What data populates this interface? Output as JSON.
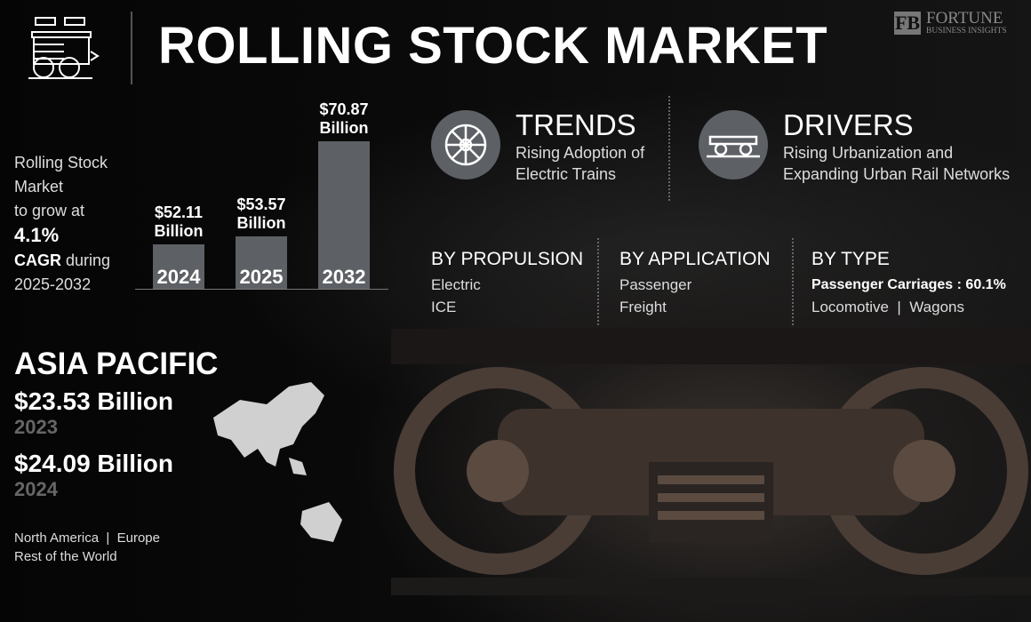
{
  "header": {
    "title": "ROLLING STOCK MARKET",
    "logo_line1": "FORTUNE",
    "logo_line2": "BUSINESS INSIGHTS",
    "icon": "train-wagon-icon"
  },
  "growth": {
    "line1": "Rolling Stock",
    "line2": "Market",
    "line3": "to grow at",
    "cagr": "4.1%",
    "cagr_label": "CAGR",
    "during": " during",
    "period": "2025-2032"
  },
  "chart_data": {
    "type": "bar",
    "categories": [
      "2024",
      "2025",
      "2032"
    ],
    "values": [
      52.11,
      53.57,
      70.87
    ],
    "labels": [
      "$52.11",
      "$53.57",
      "$70.87"
    ],
    "unit": "Billion",
    "bar_color": "#5d6065",
    "grid": false
  },
  "trends": {
    "title": "TRENDS",
    "text1": "Rising Adoption of",
    "text2": "Electric Trains",
    "icon": "train-wheel-icon"
  },
  "drivers": {
    "title": "DRIVERS",
    "text1": "Rising Urbanization and",
    "text2": "Expanding Urban Rail Networks",
    "icon": "rail-bogie-icon"
  },
  "segments": [
    {
      "title": "BY PROPULSION",
      "items": [
        "Electric",
        "ICE"
      ]
    },
    {
      "title": "BY APPLICATION",
      "items": [
        "Passenger",
        "Freight"
      ]
    },
    {
      "title": "BY TYPE",
      "highlight": "Passenger Carriages : 60.1%",
      "items": [
        "Locomotive  |  Wagons"
      ]
    }
  ],
  "region": {
    "name": "ASIA PACIFIC",
    "value1": "$23.53 Billion",
    "year1": "2023",
    "value2": "$24.09 Billion",
    "year2": "2024",
    "others1": "North America  |  Europe",
    "others2": "Rest of the World"
  }
}
